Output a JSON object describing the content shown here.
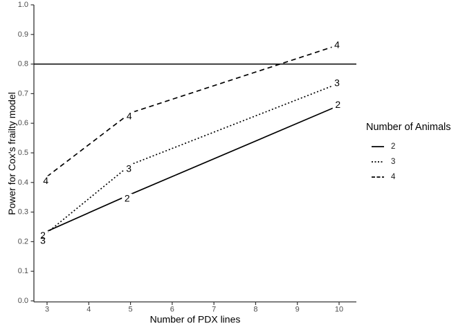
{
  "chart_data": {
    "type": "line",
    "title": "",
    "xlabel": "Number of PDX lines",
    "ylabel": "Power for Cox's frailty model",
    "xlim": [
      3,
      10
    ],
    "ylim": [
      0.0,
      1.0
    ],
    "xticks": [
      3,
      4,
      5,
      6,
      7,
      8,
      9,
      10
    ],
    "ytick_labels": [
      "0.0",
      "0.1",
      "0.2",
      "0.3",
      "0.4",
      "0.5",
      "0.6",
      "0.7",
      "0.8",
      "0.9",
      "1.0"
    ],
    "grid": "off",
    "reference_line_y": 0.8,
    "x": [
      3,
      5,
      10
    ],
    "series": [
      {
        "name": "2",
        "linetype": "solid",
        "values": [
          0.235,
          0.36,
          0.66
        ],
        "direct_labels": [
          {
            "x": 2.9,
            "y": 0.222,
            "text": "2"
          },
          {
            "x": 4.92,
            "y": 0.347,
            "text": "2"
          },
          {
            "x": 9.97,
            "y": 0.663,
            "text": "2"
          }
        ]
      },
      {
        "name": "3",
        "linetype": "dotted",
        "values": [
          0.23,
          0.46,
          0.735
        ],
        "direct_labels": [
          {
            "x": 2.9,
            "y": 0.204,
            "text": "3"
          },
          {
            "x": 4.96,
            "y": 0.447,
            "text": "3"
          },
          {
            "x": 9.95,
            "y": 0.737,
            "text": "3"
          }
        ]
      },
      {
        "name": "4",
        "linetype": "dashed",
        "values": [
          0.42,
          0.635,
          0.865
        ],
        "direct_labels": [
          {
            "x": 2.97,
            "y": 0.407,
            "text": "4"
          },
          {
            "x": 4.97,
            "y": 0.625,
            "text": "4"
          },
          {
            "x": 9.95,
            "y": 0.866,
            "text": "4"
          }
        ]
      }
    ],
    "legend": {
      "title": "Number of Animals",
      "position": "right",
      "entries": [
        {
          "label": "2",
          "linetype": "solid"
        },
        {
          "label": "3",
          "linetype": "dotted"
        },
        {
          "label": "4",
          "linetype": "dashed"
        }
      ]
    },
    "colors": {
      "line": "#000000",
      "axis": "#333333",
      "tick_label": "#4d4d4d",
      "reference_line": "#000000",
      "background": "#ffffff"
    }
  }
}
